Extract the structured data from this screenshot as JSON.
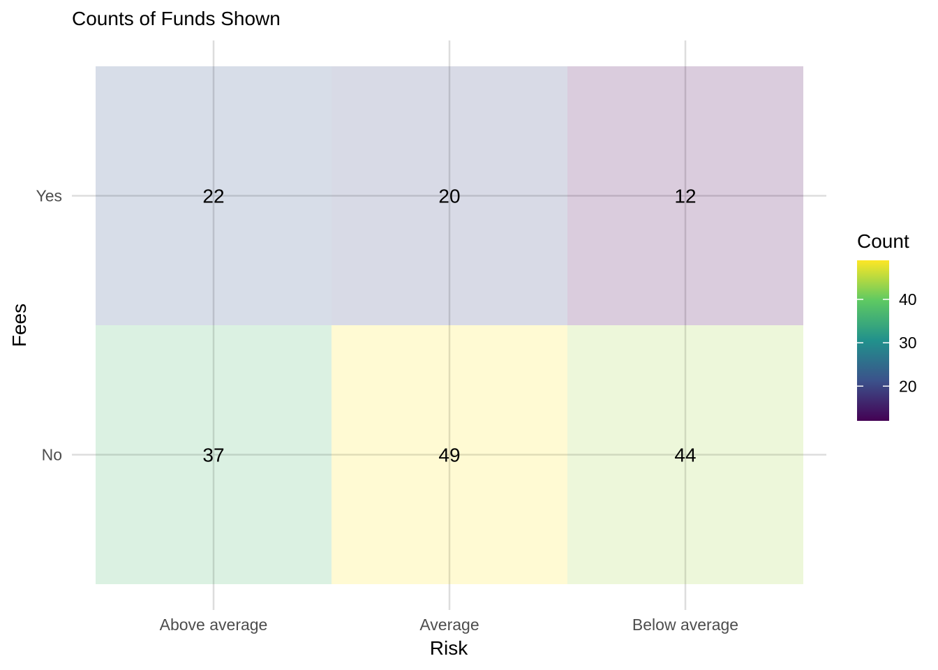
{
  "chart_data": {
    "type": "heatmap",
    "title": "Counts of Funds Shown",
    "xlabel": "Risk",
    "ylabel": "Fees",
    "x_categories": [
      "Above average",
      "Average",
      "Below average"
    ],
    "y_categories": [
      "No",
      "Yes"
    ],
    "cells": [
      {
        "x": "Above average",
        "y": "Yes",
        "value": 22
      },
      {
        "x": "Average",
        "y": "Yes",
        "value": 20
      },
      {
        "x": "Below average",
        "y": "Yes",
        "value": 12
      },
      {
        "x": "Above average",
        "y": "No",
        "value": 37
      },
      {
        "x": "Average",
        "y": "No",
        "value": 49
      },
      {
        "x": "Below average",
        "y": "No",
        "value": 44
      }
    ],
    "legend": {
      "title": "Count",
      "position": "right",
      "ticks": [
        20,
        30,
        40
      ],
      "range": [
        12,
        49
      ],
      "colormap": "viridis"
    },
    "tile_opacity": 0.2,
    "grid": true
  }
}
